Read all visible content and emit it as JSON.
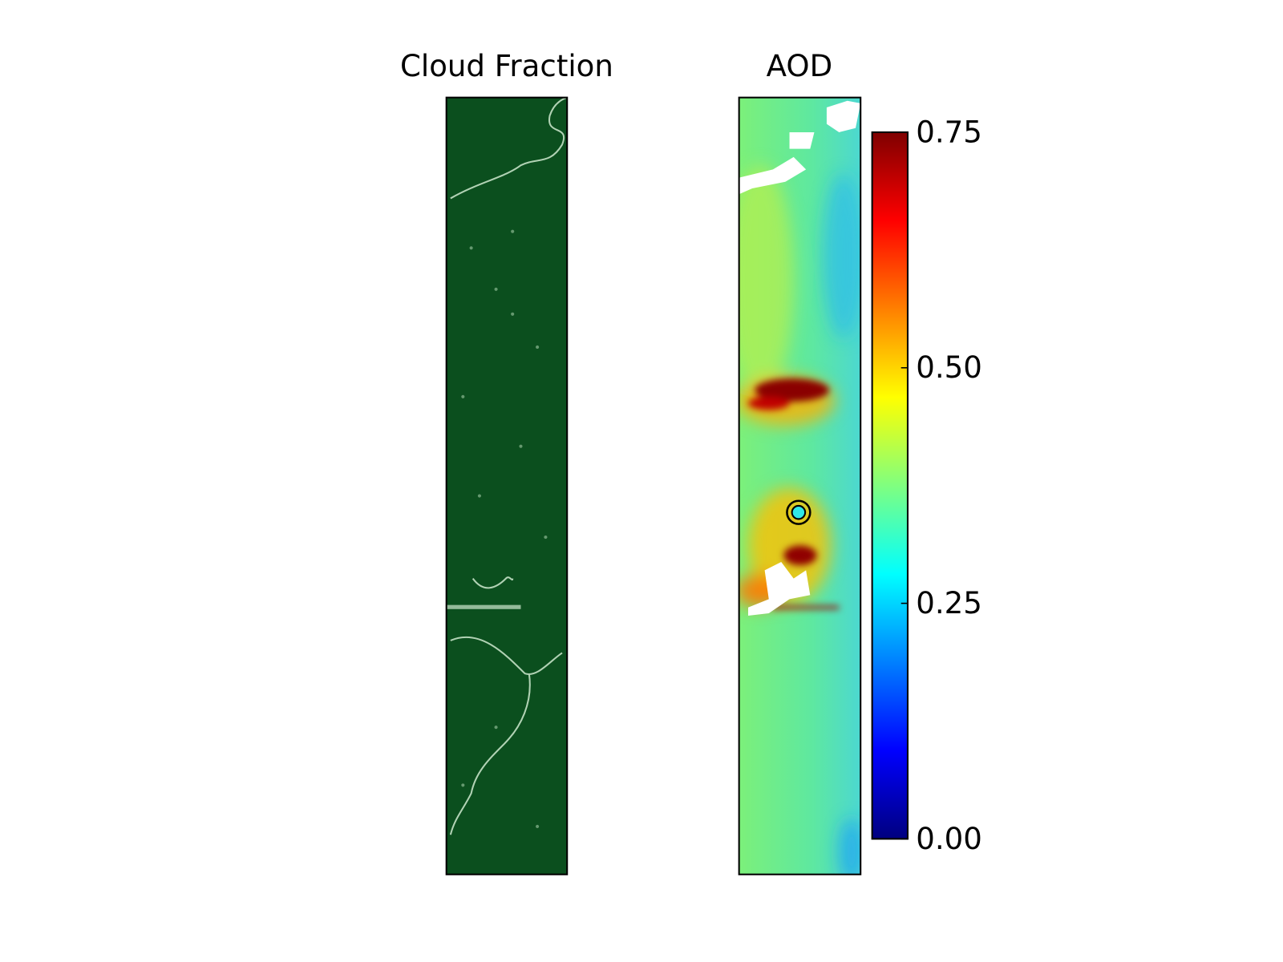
{
  "chart_data": [
    {
      "type": "image",
      "title": "Cloud Fraction"
    },
    {
      "type": "image",
      "title": "AOD",
      "colormap": "jet",
      "colorbar": {
        "clim": [
          0,
          0.75
        ],
        "ticks": [
          {
            "value": 0,
            "label": "0.00"
          },
          {
            "value": 0.25,
            "label": "0.25"
          },
          {
            "value": 0.5,
            "label": "0.50"
          },
          {
            "value": 0.75,
            "label": "0.75"
          }
        ]
      }
    }
  ]
}
